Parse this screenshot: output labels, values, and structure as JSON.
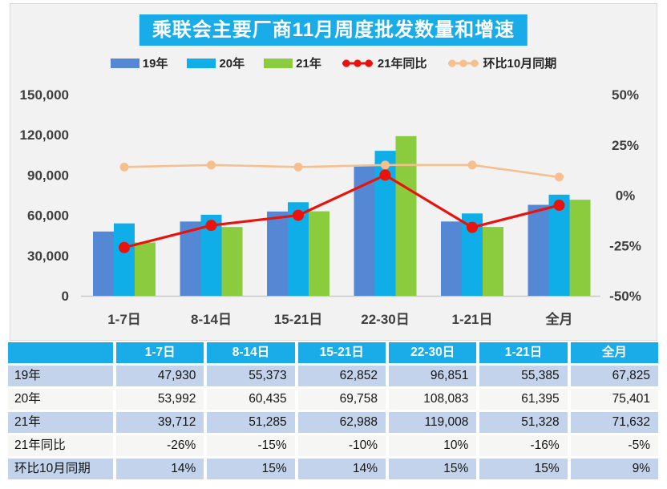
{
  "page": {
    "colors": {
      "banner_bg": "#19ACE8",
      "table_header_bg": "#19ACE8",
      "table_row_alt_blue": "#C2D3EB",
      "table_row_alt_white": "#F6F6F4",
      "panel_bg": "#F2F2F3"
    }
  },
  "chart_data": {
    "type": "bar+line combo",
    "title": "乘联会主要厂商11月周度批发数量和增速",
    "categories": [
      "1-7日",
      "8-14日",
      "15-21日",
      "22-30日",
      "1-21日",
      "全月"
    ],
    "bar_series": [
      {
        "name": "19年",
        "color": "#5588D4",
        "values": [
          47930,
          55373,
          62852,
          96851,
          55385,
          67825
        ]
      },
      {
        "name": "20年",
        "color": "#0FAEE9",
        "values": [
          53992,
          60435,
          69758,
          108083,
          61395,
          75401
        ]
      },
      {
        "name": "21年",
        "color": "#8BCB3E",
        "values": [
          39712,
          51285,
          62988,
          119008,
          51328,
          71632
        ]
      }
    ],
    "line_series": [
      {
        "name": "21年同比",
        "color": "#E8130C",
        "axis": "right",
        "marker_r": 7,
        "stroke_w": 3.2,
        "values": [
          -26,
          -15,
          -10,
          10,
          -16,
          -5
        ]
      },
      {
        "name": "环比10月同期",
        "color": "#F5C08D",
        "axis": "right",
        "marker_r": 5.5,
        "stroke_w": 2.6,
        "values": [
          14,
          15,
          14,
          15,
          15,
          9
        ]
      }
    ],
    "left_axis": {
      "min": 0,
      "max": 150000,
      "step": 30000,
      "tick_labels": [
        "150,000",
        "120,000",
        "90,000",
        "60,000",
        "30,000",
        "0"
      ]
    },
    "right_axis": {
      "min": -50,
      "max": 50,
      "step": 25,
      "tick_labels": [
        "50%",
        "25%",
        "0%",
        "-25%",
        "-50%"
      ]
    },
    "legend_position": "top",
    "grid": false
  },
  "table": {
    "header": [
      "",
      "1-7日",
      "8-14日",
      "15-21日",
      "22-30日",
      "1-21日",
      "全月"
    ],
    "rows": [
      {
        "label": "19年",
        "style": "row-a",
        "cells": [
          "47,930",
          "55,373",
          "62,852",
          "96,851",
          "55,385",
          "67,825"
        ]
      },
      {
        "label": "20年",
        "style": "row-b",
        "cells": [
          "53,992",
          "60,435",
          "69,758",
          "108,083",
          "61,395",
          "75,401"
        ]
      },
      {
        "label": "21年",
        "style": "row-a",
        "cells": [
          "39,712",
          "51,285",
          "62,988",
          "119,008",
          "51,328",
          "71,632"
        ]
      },
      {
        "label": "21年同比",
        "style": "row-b",
        "cells": [
          "-26%",
          "-15%",
          "-10%",
          "10%",
          "-16%",
          "-5%"
        ]
      },
      {
        "label": "环比10月同期",
        "style": "row-a",
        "cells": [
          "14%",
          "15%",
          "14%",
          "15%",
          "15%",
          "9%"
        ]
      }
    ]
  }
}
